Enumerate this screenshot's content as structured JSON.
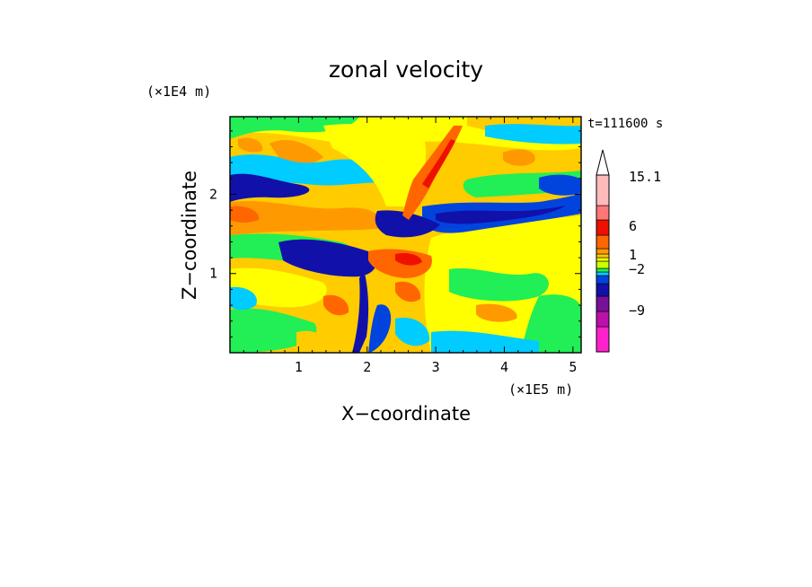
{
  "chart_data": {
    "type": "heatmap",
    "title": "zonal velocity",
    "xlabel": "X−coordinate",
    "ylabel": "Z−coordinate",
    "x_unit": "(×1E5 m)",
    "y_unit": "(×1E4 m)",
    "time_label": "t=111600 s",
    "xlim": [
      0,
      5.12
    ],
    "ylim": [
      0,
      2.98
    ],
    "x_ticks": [
      1,
      2,
      3,
      4,
      5
    ],
    "y_ticks": [
      1,
      2
    ],
    "colorbar": {
      "tick_labels": [
        "15.1",
        "6",
        "1",
        "−2",
        "−9"
      ],
      "extend_max": true
    },
    "palette": [
      "#ff22cc",
      "#bb11aa",
      "#771199",
      "#1111aa",
      "#0044dd",
      "#00ccff",
      "#22ee55",
      "#ccff00",
      "#ffff00",
      "#ffcc00",
      "#ff9900",
      "#ff6600",
      "#ee1100",
      "#ff7777",
      "#ffbbbb"
    ]
  }
}
